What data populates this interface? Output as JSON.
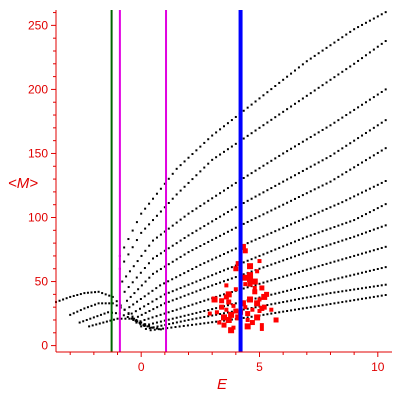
{
  "chart_data": {
    "type": "scatter",
    "title": "",
    "xlabel": "E",
    "ylabel": "<M>",
    "xlim": [
      -3.6,
      10.6
    ],
    "ylim": [
      -5,
      262
    ],
    "x_ticks": [
      "0",
      "5",
      "10"
    ],
    "x_tick_values": [
      0,
      5,
      10
    ],
    "y_ticks": [
      "0",
      "50",
      "100",
      "150",
      "200",
      "250"
    ],
    "y_tick_values": [
      0,
      50,
      100,
      150,
      200,
      250
    ],
    "grid": false,
    "legend": "none",
    "colors": {
      "axis": "#e00000",
      "ticks": "#e00000",
      "black_series": "#000000",
      "red_series": "#ff0000",
      "green_line": "#006400",
      "magenta_line": "#e000e0",
      "blue_line": "#0000ff"
    },
    "vertical_lines": [
      {
        "x": -1.25,
        "color": "#006400",
        "width": "thin"
      },
      {
        "x": -0.9,
        "color": "#e000e0",
        "width": "thin"
      },
      {
        "x": 1.05,
        "color": "#e000e0",
        "width": "thin"
      },
      {
        "x": 4.2,
        "color": "#0000ff",
        "width": "thick"
      }
    ],
    "series": [
      {
        "color": "#000000",
        "marker": "dot",
        "curves": [
          {
            "x": [
              -0.9,
              0.0,
              1.5,
              3.0,
              5.0,
              7.0,
              9.0,
              10.5
            ],
            "y": [
              70,
              103,
              138,
              164,
              193,
              222,
              247,
              262
            ]
          },
          {
            "x": [
              -0.9,
              0.0,
              1.5,
              3.0,
              5.0,
              7.0,
              9.0,
              10.5
            ],
            "y": [
              60,
              88,
              118,
              145,
              170,
              195,
              220,
              240
            ]
          },
          {
            "x": [
              -0.8,
              0.5,
              2.0,
              4.0,
              6.0,
              8.0,
              10.5
            ],
            "y": [
              50,
              82,
              103,
              127,
              150,
              172,
              202
            ]
          },
          {
            "x": [
              -0.7,
              0.5,
              2.0,
              4.0,
              6.0,
              8.0,
              10.5
            ],
            "y": [
              42,
              68,
              86,
              108,
              128,
              148,
              178
            ]
          },
          {
            "x": [
              -0.6,
              0.5,
              2.0,
              4.0,
              6.0,
              8.0,
              10.5
            ],
            "y": [
              35,
              56,
              73,
              92,
              110,
              128,
              156
            ]
          },
          {
            "x": [
              -0.5,
              0.8,
              2.5,
              4.5,
              6.5,
              8.5,
              10.5
            ],
            "y": [
              30,
              47,
              63,
              80,
              96,
              112,
              130
            ]
          },
          {
            "x": [
              -0.4,
              1.0,
              3.0,
              5.0,
              7.0,
              9.0,
              10.5
            ],
            "y": [
              25,
              40,
              55,
              70,
              85,
              98,
              112
            ]
          },
          {
            "x": [
              -0.3,
              1.0,
              3.0,
              5.0,
              7.0,
              9.0,
              10.5
            ],
            "y": [
              21,
              33,
              47,
              60,
              73,
              85,
              95
            ]
          },
          {
            "x": [
              -0.2,
              1.5,
              3.5,
              5.5,
              7.5,
              10.5
            ],
            "y": [
              18,
              28,
              40,
              51,
              62,
              78
            ]
          },
          {
            "x": [
              0.0,
              2.0,
              4.0,
              6.0,
              8.0,
              10.5
            ],
            "y": [
              15,
              24,
              33,
              42,
              51,
              62
            ]
          },
          {
            "x": [
              0.2,
              2.0,
              4.0,
              6.0,
              8.0,
              10.5
            ],
            "y": [
              13,
              20,
              27,
              34,
              41,
              48
            ]
          },
          {
            "x": [
              0.4,
              2.5,
              4.5,
              6.5,
              8.5,
              10.5
            ],
            "y": [
              12,
              17,
              22,
              28,
              34,
              40
            ]
          },
          {
            "x": [
              -3.6,
              -3.0,
              -2.4,
              -1.8,
              -1.2,
              -0.7,
              -0.2,
              0.3
            ],
            "y": [
              34,
              38,
              41,
              42,
              38,
              28,
              18,
              14
            ]
          },
          {
            "x": [
              -3.0,
              -2.4,
              -1.8,
              -1.2,
              -0.7,
              -0.2,
              0.3
            ],
            "y": [
              24,
              29,
              33,
              33,
              28,
              20,
              15
            ]
          },
          {
            "x": [
              -2.6,
              -2.0,
              -1.4,
              -0.9,
              -0.4,
              0.1,
              0.6
            ],
            "y": [
              18,
              22,
              26,
              25,
              21,
              16,
              13
            ]
          },
          {
            "x": [
              -2.2,
              -1.6,
              -1.0,
              -0.5,
              0.0,
              0.5,
              1.0
            ],
            "y": [
              15,
              18,
              21,
              21,
              18,
              14,
              12
            ]
          }
        ]
      },
      {
        "color": "#ff0000",
        "marker": "square",
        "points": {
          "x": [
            3.2,
            3.4,
            3.5,
            3.6,
            3.7,
            3.8,
            3.9,
            4.0,
            4.1,
            3.3,
            3.5,
            3.7,
            3.9,
            3.6,
            3.8,
            4.0,
            3.4,
            3.7,
            4.4,
            4.5,
            4.6,
            4.7,
            4.8,
            4.9,
            5.0,
            5.1,
            5.2,
            4.5,
            4.7,
            4.9,
            5.1,
            4.6,
            4.8,
            5.0,
            5.2,
            4.6,
            4.9,
            5.3,
            4.5,
            5.1,
            4.2,
            4.3,
            4.4,
            4.1,
            4.3,
            5.0,
            4.4,
            4.6,
            5.5,
            5.7,
            3.1,
            2.9,
            4.0,
            4.6,
            4.8,
            5.1,
            4.4,
            3.6
          ],
          "y": [
            26,
            30,
            22,
            28,
            34,
            24,
            31,
            27,
            22,
            18,
            16,
            20,
            14,
            38,
            12,
            44,
            35,
            40,
            30,
            25,
            36,
            28,
            42,
            33,
            27,
            45,
            38,
            20,
            18,
            22,
            16,
            48,
            50,
            36,
            30,
            55,
            58,
            40,
            15,
            13,
            26,
            33,
            48,
            64,
            77,
            66,
            74,
            52,
            28,
            20,
            36,
            25,
            60,
            62,
            45,
            29,
            53,
            47
          ]
        }
      }
    ]
  }
}
